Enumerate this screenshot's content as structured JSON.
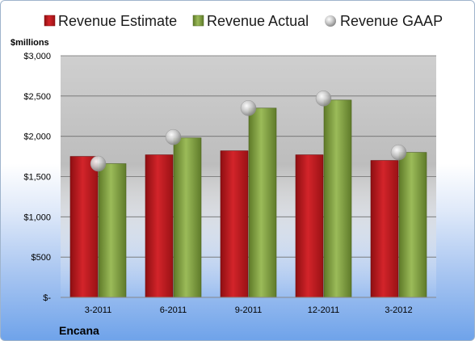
{
  "chart_data": {
    "type": "bar",
    "title": "",
    "company": "Encana",
    "ylabel": "$millions",
    "ylim": [
      0,
      3000
    ],
    "yticks": [
      {
        "value": 0,
        "label": "$-"
      },
      {
        "value": 500,
        "label": "$500"
      },
      {
        "value": 1000,
        "label": "$1,000"
      },
      {
        "value": 1500,
        "label": "$1,500"
      },
      {
        "value": 2000,
        "label": "$2,000"
      },
      {
        "value": 2500,
        "label": "$2,500"
      },
      {
        "value": 3000,
        "label": "$3,000"
      }
    ],
    "categories": [
      "3-2011",
      "6-2011",
      "9-2011",
      "12-2011",
      "3-2012"
    ],
    "series": [
      {
        "name": "Revenue Estimate",
        "kind": "bar",
        "color": "#c0161b",
        "values": [
          1750,
          1770,
          1820,
          1770,
          1700
        ]
      },
      {
        "name": "Revenue Actual",
        "kind": "bar",
        "color": "#7f9f3c",
        "values": [
          1660,
          1980,
          2350,
          2450,
          1800
        ]
      },
      {
        "name": "Revenue GAAP",
        "kind": "marker",
        "color": "#b8b8b8",
        "values": [
          1660,
          1990,
          2350,
          2470,
          1800
        ]
      }
    ],
    "grid": true,
    "legend_position": "top"
  }
}
